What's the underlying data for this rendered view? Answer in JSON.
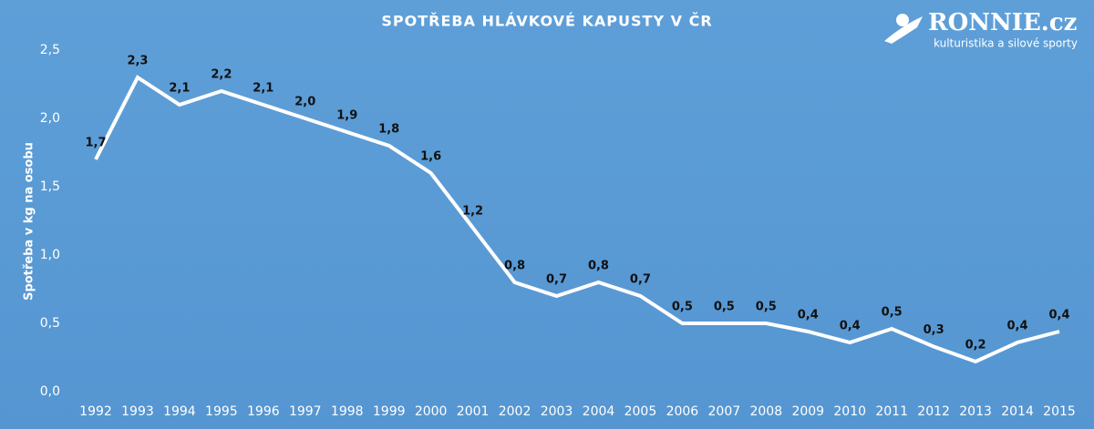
{
  "chart_data": {
    "type": "line",
    "title": "SPOTŘEBA HLÁVKOVÉ KAPUSTY V ČR",
    "y_label": "Spotřeba v kg na osobu",
    "categories": [
      "1992",
      "1993",
      "1994",
      "1995",
      "1996",
      "1997",
      "1998",
      "1999",
      "2000",
      "2001",
      "2002",
      "2003",
      "2004",
      "2005",
      "2006",
      "2007",
      "2008",
      "2009",
      "2010",
      "2011",
      "2012",
      "2013",
      "2014",
      "2015"
    ],
    "series": [
      {
        "name": "Spotřeba",
        "color": "#ffffff",
        "values": [
          1.7,
          2.3,
          2.1,
          2.2,
          2.1,
          2.0,
          1.9,
          1.8,
          1.6,
          1.2,
          0.8,
          0.7,
          0.8,
          0.7,
          0.5,
          0.5,
          0.5,
          0.44,
          0.36,
          0.46,
          0.33,
          0.22,
          0.36,
          0.44
        ],
        "value_labels": [
          "1,7",
          "2,3",
          "2,1",
          "2,2",
          "2,1",
          "2,0",
          "1,9",
          "1,8",
          "1,6",
          "1,2",
          "0,8",
          "0,7",
          "0,8",
          "0,7",
          "0,5",
          "0,5",
          "0,5",
          "0,4",
          "0,4",
          "0,5",
          "0,3",
          "0,2",
          "0,4",
          "0,4"
        ]
      }
    ],
    "ylim": [
      0,
      2.5
    ],
    "yticks": [
      {
        "value": 0,
        "label": "0,0"
      },
      {
        "value": 0.5,
        "label": "0,5"
      },
      {
        "value": 1,
        "label": "1,0"
      },
      {
        "value": 1.5,
        "label": "1,5"
      },
      {
        "value": 2,
        "label": "2,0"
      },
      {
        "value": 2.5,
        "label": "2,5"
      }
    ],
    "grid": false
  },
  "logo": {
    "name": "RONNIE.cz",
    "tagline": "kulturistika a silové sporty"
  }
}
